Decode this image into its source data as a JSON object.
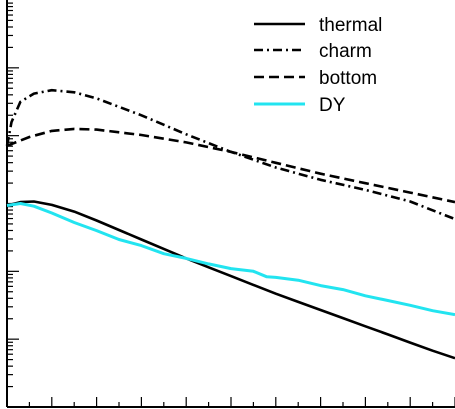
{
  "chart_data": {
    "type": "line",
    "x_range": [
      0,
      10
    ],
    "y_range": [
      0,
      6
    ],
    "y_scale": "log",
    "grid": false,
    "legend_position": "top-right",
    "series": [
      {
        "name": "thermal",
        "color": "#000000",
        "dash": "solid",
        "x": [
          0.0,
          0.3,
          0.6,
          1.0,
          1.5,
          2.0,
          2.5,
          3.0,
          3.5,
          4.0,
          4.5,
          5.0,
          5.5,
          6.0,
          6.5,
          7.0,
          7.5,
          8.0,
          8.5,
          9.0,
          9.5,
          10.0
        ],
        "y": [
          2.97,
          3.02,
          3.03,
          2.98,
          2.88,
          2.75,
          2.61,
          2.47,
          2.33,
          2.19,
          2.06,
          1.93,
          1.8,
          1.67,
          1.55,
          1.43,
          1.31,
          1.19,
          1.07,
          0.95,
          0.83,
          0.72
        ]
      },
      {
        "name": "charm",
        "color": "#000000",
        "dash": "dashdot",
        "x": [
          0.0,
          0.1,
          0.3,
          0.6,
          1.0,
          1.5,
          2.0,
          3.0,
          4.0,
          5.0,
          6.0,
          7.0,
          8.0,
          9.0,
          10.0
        ],
        "y": [
          3.85,
          4.2,
          4.5,
          4.62,
          4.67,
          4.64,
          4.55,
          4.3,
          4.02,
          3.76,
          3.53,
          3.35,
          3.2,
          3.03,
          2.77
        ]
      },
      {
        "name": "bottom",
        "color": "#000000",
        "dash": "dashed",
        "x": [
          0.0,
          0.5,
          1.0,
          1.5,
          2.0,
          3.0,
          4.0,
          5.0,
          6.0,
          7.0,
          8.0,
          9.0,
          10.0
        ],
        "y": [
          3.85,
          3.98,
          4.07,
          4.1,
          4.09,
          4.01,
          3.9,
          3.76,
          3.6,
          3.44,
          3.3,
          3.16,
          3.02
        ]
      },
      {
        "name": "DY",
        "color": "#22e4f0",
        "dash": "solid",
        "x": [
          0.0,
          0.3,
          0.6,
          1.0,
          1.5,
          2.0,
          2.5,
          3.0,
          3.5,
          4.0,
          4.5,
          5.0,
          5.5,
          5.8,
          6.0,
          6.5,
          7.0,
          7.5,
          8.0,
          8.5,
          9.0,
          9.5,
          10.0
        ],
        "y": [
          2.97,
          3.0,
          2.96,
          2.86,
          2.72,
          2.6,
          2.47,
          2.38,
          2.26,
          2.19,
          2.11,
          2.04,
          2.0,
          1.92,
          1.91,
          1.87,
          1.79,
          1.73,
          1.64,
          1.57,
          1.5,
          1.42,
          1.36
        ]
      }
    ]
  }
}
